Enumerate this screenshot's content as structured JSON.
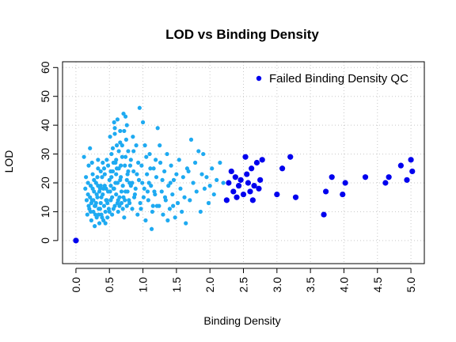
{
  "chart_data": {
    "type": "scatter",
    "title": "LOD vs Binding Density",
    "xlabel": "Binding Density",
    "ylabel": "LOD",
    "xlim": [
      -0.2,
      5.2
    ],
    "ylim": [
      -8,
      62
    ],
    "x_ticks": [
      "0.0",
      "0.5",
      "1.0",
      "1.5",
      "2.0",
      "2.5",
      "3.0",
      "3.5",
      "4.0",
      "4.5",
      "5.0"
    ],
    "y_ticks": [
      "0",
      "10",
      "20",
      "30",
      "40",
      "50",
      "60"
    ],
    "grid": true,
    "legend": {
      "position": "top-right",
      "entries": [
        {
          "label": "Failed Binding Density QC",
          "color": "#0000EE"
        }
      ]
    },
    "colors": {
      "passed": "#1EAAF1",
      "failed": "#0000EE"
    },
    "series": [
      {
        "color": "#1EAAF1",
        "points": [
          [
            0.12,
            29
          ],
          [
            0.15,
            22
          ],
          [
            0.16,
            14
          ],
          [
            0.17,
            9
          ],
          [
            0.18,
            16
          ],
          [
            0.19,
            26
          ],
          [
            0.2,
            11
          ],
          [
            0.21,
            32
          ],
          [
            0.22,
            19
          ],
          [
            0.23,
            7
          ],
          [
            0.24,
            14
          ],
          [
            0.25,
            23
          ],
          [
            0.26,
            10
          ],
          [
            0.27,
            17
          ],
          [
            0.28,
            5
          ],
          [
            0.29,
            12
          ],
          [
            0.3,
            20
          ],
          [
            0.31,
            8
          ],
          [
            0.32,
            15
          ],
          [
            0.33,
            25
          ],
          [
            0.34,
            11
          ],
          [
            0.35,
            6
          ],
          [
            0.36,
            18
          ],
          [
            0.37,
            13
          ],
          [
            0.38,
            9
          ],
          [
            0.39,
            22
          ],
          [
            0.4,
            16
          ],
          [
            0.41,
            7
          ],
          [
            0.42,
            12
          ],
          [
            0.43,
            19
          ],
          [
            0.44,
            10
          ],
          [
            0.45,
            14
          ],
          [
            0.46,
            28
          ],
          [
            0.47,
            8
          ],
          [
            0.48,
            17
          ],
          [
            0.49,
            11
          ],
          [
            0.5,
            21
          ],
          [
            0.51,
            36
          ],
          [
            0.52,
            14
          ],
          [
            0.53,
            30
          ],
          [
            0.54,
            9
          ],
          [
            0.55,
            24
          ],
          [
            0.56,
            18
          ],
          [
            0.57,
            41
          ],
          [
            0.58,
            12
          ],
          [
            0.59,
            27
          ],
          [
            0.6,
            16
          ],
          [
            0.61,
            33
          ],
          [
            0.62,
            20
          ],
          [
            0.63,
            10
          ],
          [
            0.64,
            25
          ],
          [
            0.65,
            15
          ],
          [
            0.66,
            38
          ],
          [
            0.67,
            22
          ],
          [
            0.68,
            13
          ],
          [
            0.69,
            29
          ],
          [
            0.7,
            19
          ],
          [
            0.71,
            44
          ],
          [
            0.72,
            8
          ],
          [
            0.73,
            26
          ],
          [
            0.74,
            17
          ],
          [
            0.75,
            35
          ],
          [
            0.76,
            12
          ],
          [
            0.77,
            23
          ],
          [
            0.78,
            31
          ],
          [
            0.79,
            14
          ],
          [
            0.8,
            20
          ],
          [
            0.82,
            28
          ],
          [
            0.84,
            11
          ],
          [
            0.86,
            24
          ],
          [
            0.88,
            16
          ],
          [
            0.9,
            33
          ],
          [
            0.92,
            9
          ],
          [
            0.94,
            21
          ],
          [
            0.95,
            46
          ],
          [
            0.96,
            13
          ],
          [
            0.98,
            26
          ],
          [
            1.0,
            41
          ],
          [
            1.02,
            18
          ],
          [
            1.04,
            7
          ],
          [
            1.06,
            23
          ],
          [
            1.08,
            14
          ],
          [
            1.1,
            30
          ],
          [
            1.12,
            19
          ],
          [
            1.14,
            10
          ],
          [
            1.16,
            25
          ],
          [
            1.18,
            16
          ],
          [
            1.2,
            22
          ],
          [
            1.22,
            39
          ],
          [
            1.24,
            12
          ],
          [
            1.26,
            27
          ],
          [
            1.28,
            17
          ],
          [
            1.3,
            9
          ],
          [
            1.32,
            24
          ],
          [
            1.34,
            14
          ],
          [
            1.36,
            30
          ],
          [
            1.38,
            19
          ],
          [
            1.4,
            11
          ],
          [
            1.42,
            26
          ],
          [
            1.44,
            16
          ],
          [
            1.46,
            21
          ],
          [
            1.48,
            8
          ],
          [
            1.5,
            23
          ],
          [
            1.52,
            13
          ],
          [
            1.54,
            28
          ],
          [
            1.56,
            18
          ],
          [
            1.58,
            10
          ],
          [
            1.6,
            22
          ],
          [
            1.62,
            15
          ],
          [
            1.64,
            6
          ],
          [
            1.66,
            25
          ],
          [
            1.68,
            24
          ],
          [
            1.7,
            14
          ],
          [
            1.72,
            35
          ],
          [
            1.75,
            20
          ],
          [
            1.78,
            27
          ],
          [
            1.8,
            17
          ],
          [
            1.83,
            31
          ],
          [
            1.86,
            10
          ],
          [
            1.88,
            23
          ],
          [
            1.9,
            30
          ],
          [
            1.92,
            18
          ],
          [
            1.95,
            22
          ],
          [
            1.98,
            13
          ],
          [
            2.0,
            19
          ],
          [
            2.03,
            25
          ],
          [
            2.06,
            16
          ],
          [
            2.1,
            21
          ],
          [
            2.15,
            27
          ],
          [
            2.2,
            20
          ],
          [
            0.23,
            13
          ],
          [
            0.27,
            21
          ],
          [
            0.31,
            16
          ],
          [
            0.34,
            9
          ],
          [
            0.37,
            24
          ],
          [
            0.41,
            18
          ],
          [
            0.44,
            6
          ],
          [
            0.48,
            26
          ],
          [
            0.52,
            19
          ],
          [
            0.56,
            11
          ],
          [
            0.6,
            23
          ],
          [
            0.64,
            31
          ],
          [
            0.68,
            17
          ],
          [
            0.72,
            38
          ],
          [
            0.76,
            21
          ],
          [
            0.8,
            13
          ],
          [
            0.85,
            36
          ],
          [
            0.89,
            18
          ],
          [
            0.93,
            27
          ],
          [
            0.97,
            11
          ],
          [
            1.01,
            15
          ],
          [
            1.05,
            29
          ],
          [
            1.09,
            20
          ],
          [
            1.13,
            4
          ],
          [
            1.17,
            17
          ],
          [
            1.21,
            12
          ],
          [
            1.25,
            33
          ],
          [
            1.29,
            21
          ],
          [
            1.33,
            15
          ],
          [
            1.37,
            7
          ],
          [
            1.41,
            20
          ],
          [
            1.45,
            12
          ],
          [
            0.18,
            20
          ],
          [
            0.21,
            15
          ],
          [
            0.24,
            27
          ],
          [
            0.28,
            12
          ],
          [
            0.33,
            19
          ],
          [
            0.38,
            15
          ],
          [
            0.43,
            23
          ],
          [
            0.47,
            13
          ],
          [
            0.51,
            17
          ],
          [
            0.55,
            32
          ],
          [
            0.59,
            20
          ],
          [
            0.63,
            14
          ],
          [
            0.67,
            26
          ],
          [
            0.71,
            15
          ],
          [
            0.74,
            29
          ],
          [
            0.78,
            24
          ],
          [
            0.82,
            19
          ],
          [
            0.87,
            15
          ],
          [
            0.91,
            23
          ],
          [
            0.99,
            20
          ],
          [
            1.03,
            33
          ],
          [
            1.07,
            17
          ],
          [
            1.11,
            25
          ],
          [
            1.15,
            12
          ],
          [
            1.19,
            28
          ],
          [
            0.26,
            14
          ],
          [
            0.29,
            9
          ],
          [
            0.32,
            22
          ],
          [
            0.36,
            11
          ],
          [
            0.4,
            27
          ],
          [
            0.45,
            18
          ],
          [
            0.5,
            10
          ],
          [
            0.54,
            15
          ],
          [
            0.58,
            37
          ],
          [
            0.62,
            13
          ],
          [
            0.66,
            21
          ],
          [
            0.7,
            11
          ],
          [
            0.22,
            10
          ],
          [
            0.25,
            18
          ],
          [
            0.3,
            13
          ],
          [
            0.35,
            17
          ],
          [
            0.39,
            8
          ],
          [
            0.42,
            25
          ],
          [
            0.46,
            14
          ],
          [
            0.53,
            22
          ],
          [
            0.57,
            18
          ],
          [
            0.61,
            25
          ],
          [
            0.65,
            12
          ],
          [
            0.69,
            33
          ],
          [
            0.73,
            14
          ],
          [
            0.77,
            17
          ],
          [
            0.81,
            26
          ],
          [
            0.84,
            20
          ],
          [
            0.6,
            28
          ],
          [
            0.66,
            34
          ],
          [
            0.58,
            39
          ],
          [
            0.62,
            42
          ],
          [
            0.74,
            43
          ],
          [
            0.76,
            40
          ],
          [
            0.86,
            31
          ],
          [
            0.14,
            18
          ],
          [
            0.19,
            12
          ],
          [
            0.33,
            28
          ],
          [
            0.37,
            19
          ],
          [
            0.52,
            24
          ],
          [
            0.56,
            27
          ]
        ]
      },
      {
        "name": "Failed Binding Density QC",
        "color": "#0000EE",
        "points": [
          [
            0.0,
            0
          ],
          [
            2.25,
            14
          ],
          [
            2.28,
            20
          ],
          [
            2.32,
            24
          ],
          [
            2.35,
            17
          ],
          [
            2.38,
            22
          ],
          [
            2.4,
            15
          ],
          [
            2.43,
            19
          ],
          [
            2.46,
            21
          ],
          [
            2.5,
            16
          ],
          [
            2.53,
            29
          ],
          [
            2.55,
            23
          ],
          [
            2.57,
            20
          ],
          [
            2.6,
            17
          ],
          [
            2.62,
            25
          ],
          [
            2.64,
            14
          ],
          [
            2.66,
            19
          ],
          [
            2.7,
            27
          ],
          [
            2.73,
            18
          ],
          [
            2.75,
            21
          ],
          [
            2.78,
            28
          ],
          [
            3.0,
            16
          ],
          [
            3.08,
            25
          ],
          [
            3.2,
            29
          ],
          [
            3.28,
            15
          ],
          [
            3.7,
            9
          ],
          [
            3.73,
            17
          ],
          [
            3.82,
            22
          ],
          [
            3.98,
            16
          ],
          [
            4.02,
            20
          ],
          [
            4.32,
            22
          ],
          [
            4.62,
            20
          ],
          [
            4.67,
            22
          ],
          [
            4.85,
            26
          ],
          [
            4.94,
            21
          ],
          [
            5.0,
            28
          ],
          [
            5.02,
            24
          ]
        ]
      }
    ]
  }
}
